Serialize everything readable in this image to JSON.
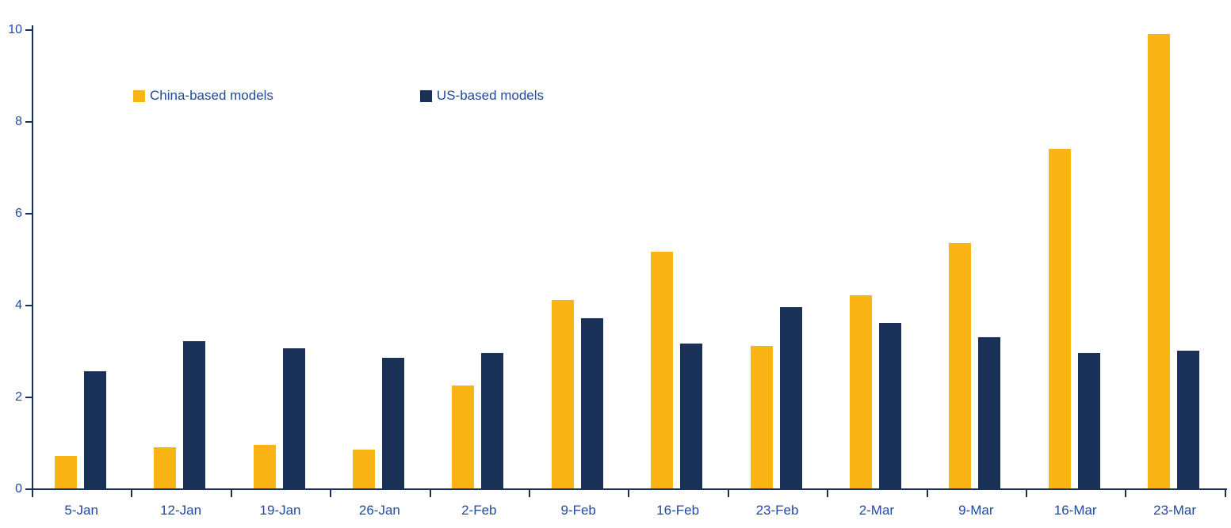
{
  "chart_data": {
    "type": "bar",
    "title": "",
    "categories": [
      "5-Jan",
      "12-Jan",
      "19-Jan",
      "26-Jan",
      "2-Feb",
      "9-Feb",
      "16-Feb",
      "23-Feb",
      "2-Mar",
      "9-Mar",
      "16-Mar",
      "23-Mar"
    ],
    "series": [
      {
        "name": "China-based models",
        "color": "#FBB416",
        "values": [
          0.7,
          0.9,
          0.95,
          0.85,
          2.25,
          4.1,
          5.15,
          3.1,
          4.2,
          5.35,
          7.4,
          9.9
        ]
      },
      {
        "name": "US-based models",
        "color": "#1A3157",
        "values": [
          2.55,
          3.2,
          3.05,
          2.85,
          2.95,
          3.7,
          3.15,
          3.95,
          3.6,
          3.3,
          2.95,
          3.0
        ]
      }
    ],
    "xlabel": "",
    "ylabel": "",
    "ylim": [
      0,
      10
    ],
    "yticks": [
      0,
      2,
      4,
      6,
      8,
      10
    ],
    "grid": false,
    "legend_position": "top-left-inside",
    "axis_color": "#1A3157",
    "label_color": "#2149A0"
  }
}
